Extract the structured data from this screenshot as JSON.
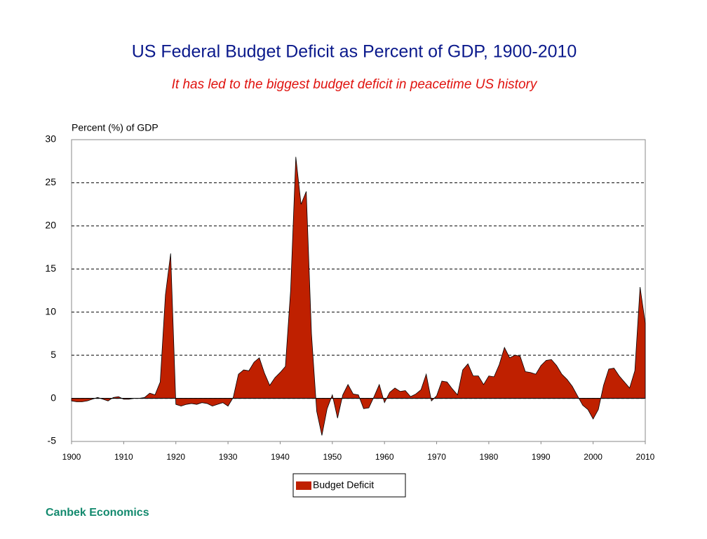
{
  "chart_data": {
    "type": "area",
    "title": "US Federal Budget Deficit as Percent of GDP, 1900-2010",
    "subtitle": "It has led to the biggest budget deficit in peacetime US history",
    "y_label": "Percent (%) of GDP",
    "footer": "Canbek Economics",
    "x": [
      1900,
      1901,
      1902,
      1903,
      1904,
      1905,
      1906,
      1907,
      1908,
      1909,
      1910,
      1911,
      1912,
      1913,
      1914,
      1915,
      1916,
      1917,
      1918,
      1919,
      1920,
      1921,
      1922,
      1923,
      1924,
      1925,
      1926,
      1927,
      1928,
      1929,
      1930,
      1931,
      1932,
      1933,
      1934,
      1935,
      1936,
      1937,
      1938,
      1939,
      1940,
      1941,
      1942,
      1943,
      1944,
      1945,
      1946,
      1947,
      1948,
      1949,
      1950,
      1951,
      1952,
      1953,
      1954,
      1955,
      1956,
      1957,
      1958,
      1959,
      1960,
      1961,
      1962,
      1963,
      1964,
      1965,
      1966,
      1967,
      1968,
      1969,
      1970,
      1971,
      1972,
      1973,
      1974,
      1975,
      1976,
      1977,
      1978,
      1979,
      1980,
      1981,
      1982,
      1983,
      1984,
      1985,
      1986,
      1987,
      1988,
      1989,
      1990,
      1991,
      1992,
      1993,
      1994,
      1995,
      1996,
      1997,
      1998,
      1999,
      2000,
      2001,
      2002,
      2003,
      2004,
      2005,
      2006,
      2007,
      2008,
      2009,
      2010
    ],
    "series": [
      {
        "name": "Budget Deficit",
        "color": "#bf2000",
        "values": [
          -0.3,
          -0.4,
          -0.4,
          -0.3,
          -0.1,
          0.1,
          -0.1,
          -0.3,
          0.1,
          0.2,
          -0.1,
          -0.1,
          0,
          0,
          0.1,
          0.6,
          0.4,
          1.9,
          12,
          16.8,
          -0.7,
          -0.9,
          -0.7,
          -0.6,
          -0.7,
          -0.5,
          -0.6,
          -0.9,
          -0.7,
          -0.5,
          -0.9,
          0.1,
          2.8,
          3.3,
          3.2,
          4.2,
          4.7,
          2.9,
          1.5,
          2.4,
          3,
          3.7,
          12.5,
          28,
          22.5,
          24,
          7.5,
          -1.5,
          -4.3,
          -1.2,
          0.4,
          -2.3,
          0.4,
          1.6,
          0.5,
          0.4,
          -1.2,
          -1.1,
          0.2,
          1.6,
          -0.5,
          0.7,
          1.2,
          0.8,
          0.9,
          0.2,
          0.5,
          1,
          2.8,
          -0.3,
          0.3,
          2,
          1.9,
          1.1,
          0.4,
          3.3,
          4,
          2.6,
          2.6,
          1.6,
          2.6,
          2.5,
          3.9,
          5.9,
          4.7,
          5,
          4.9,
          3.1,
          3,
          2.8,
          3.8,
          4.4,
          4.5,
          3.8,
          2.8,
          2.2,
          1.4,
          0.3,
          -0.8,
          -1.3,
          -2.4,
          -1.3,
          1.5,
          3.4,
          3.5,
          2.6,
          1.9,
          1.2,
          3.2,
          12.9,
          8.7
        ]
      }
    ],
    "xlim": [
      1900,
      2010
    ],
    "xticks": [
      1900,
      1910,
      1920,
      1930,
      1940,
      1950,
      1960,
      1970,
      1980,
      1990,
      2000,
      2010
    ],
    "ylim": [
      -5,
      30
    ],
    "yticks": [
      -5,
      0,
      5,
      10,
      15,
      20,
      25,
      30
    ],
    "grid": true
  }
}
